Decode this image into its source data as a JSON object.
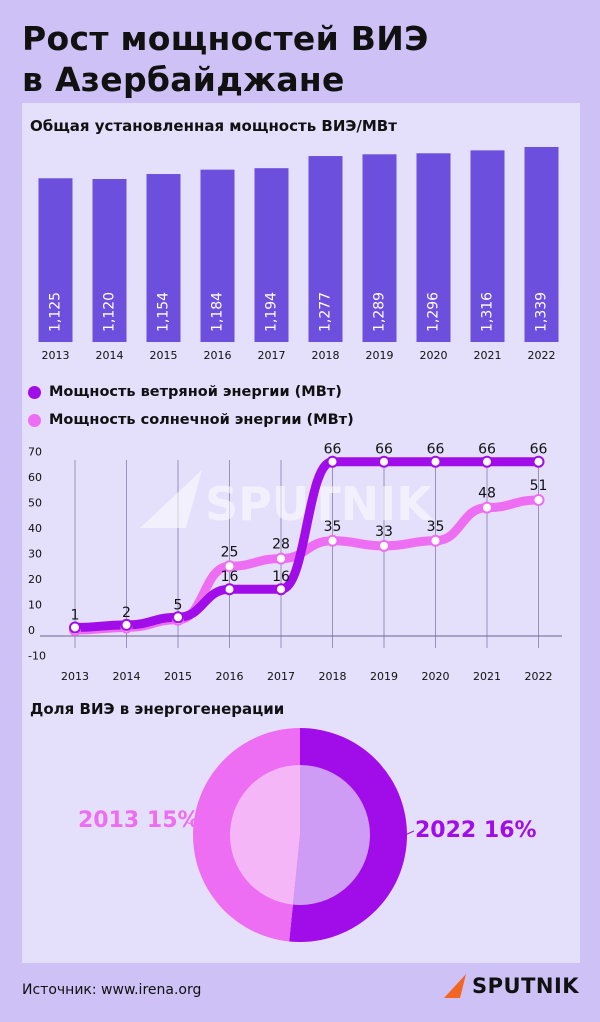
{
  "title": "Рост мощностей ВИЭ\nв Азербайджане",
  "source": "Источник: www.irena.org",
  "brand": "SPUTNIK",
  "watermark": "SPUTNIK",
  "colors": {
    "background": "#cdc1f5",
    "panel": "#e4dffb",
    "bar": "#6c4fdc",
    "wind": "#a10de8",
    "solar": "#ee6ef3",
    "pie_2022": "#a10de8",
    "pie_2013": "#ee6ef3",
    "brand_arrow": "#f26522"
  },
  "chart_data": [
    {
      "type": "bar",
      "title": "Общая установленная мощность ВИЭ/МВт",
      "categories": [
        "2013",
        "2014",
        "2015",
        "2016",
        "2017",
        "2018",
        "2019",
        "2020",
        "2021",
        "2022"
      ],
      "values": [
        1125,
        1120,
        1154,
        1184,
        1194,
        1277,
        1289,
        1296,
        1316,
        1339
      ],
      "value_labels": [
        "1,125",
        "1,120",
        "1,154",
        "1,184",
        "1,194",
        "1,277",
        "1,289",
        "1,296",
        "1,316",
        "1,339"
      ]
    },
    {
      "type": "line",
      "x": [
        "2013",
        "2014",
        "2015",
        "2016",
        "2017",
        "2018",
        "2019",
        "2020",
        "2021",
        "2022"
      ],
      "ylim": [
        -10,
        70
      ],
      "yticks": [
        -10,
        0,
        10,
        20,
        30,
        40,
        50,
        60,
        70
      ],
      "grid": "vertical",
      "legend": "top-left",
      "series": [
        {
          "name": "Мощность ветряной энергии (МВт)",
          "values": [
            1,
            2,
            5,
            16,
            16,
            66,
            66,
            66,
            66,
            66
          ]
        },
        {
          "name": "Мощность солнечной энергии (МВт)",
          "values": [
            0,
            1,
            4,
            25,
            28,
            35,
            33,
            35,
            48,
            51
          ]
        }
      ],
      "data_labels": [
        "1",
        "2",
        "5",
        "16",
        "16",
        "66",
        "66",
        "66",
        "66",
        "66",
        "",
        "",
        "",
        "25",
        "28",
        "35",
        "33",
        "35",
        "48",
        "51"
      ]
    },
    {
      "type": "pie",
      "title": "Доля ВИЭ в энергогенерации",
      "slices": [
        {
          "label": "2022 16%",
          "year": "2022",
          "value": 16
        },
        {
          "label": "2013 15%",
          "year": "2013",
          "value": 15
        }
      ]
    }
  ]
}
